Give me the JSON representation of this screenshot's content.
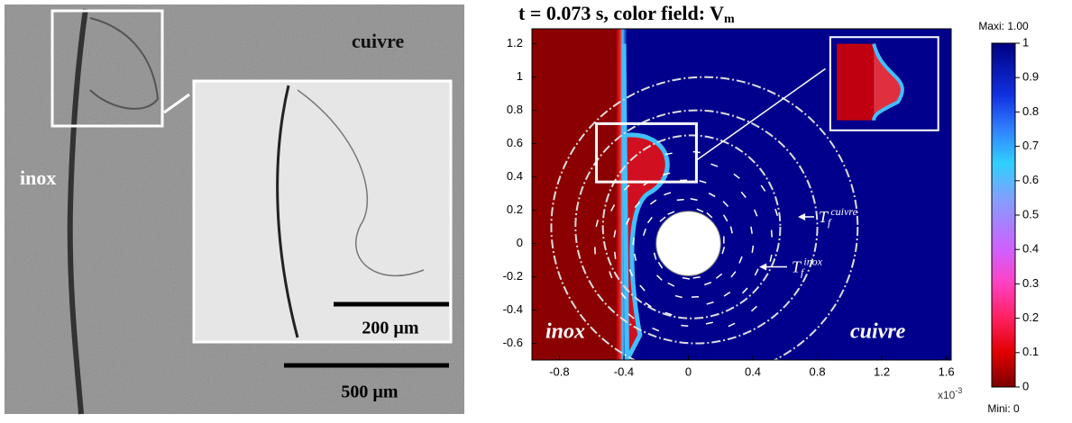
{
  "micrograph": {
    "labels": {
      "inox": "inox",
      "cuivre": "cuivre"
    },
    "scale_bars": [
      {
        "label": "200 µm"
      },
      {
        "label": "500 µm"
      }
    ]
  },
  "simulation": {
    "title": "t = 0.073 s, color field: V",
    "title_subscript": "m",
    "xlim": [
      -0.97,
      1.63
    ],
    "xticks": [
      -0.8,
      -0.4,
      0,
      0.4,
      0.8,
      1.2,
      1.6
    ],
    "x_multiplier": "x10",
    "x_multiplier_exponent": "-3",
    "ylim": [
      -0.7,
      1.29
    ],
    "yticks": [
      -0.6,
      -0.4,
      -0.2,
      0,
      0.2,
      0.4,
      0.6,
      0.8,
      1,
      1.2
    ],
    "region_labels": {
      "inox": "inox",
      "cuivre": "cuivre"
    },
    "isotherm_labels": [
      {
        "base": "T",
        "sub": "f",
        "sup": "cuivre"
      },
      {
        "base": "T",
        "sub": "f",
        "sup": "inox"
      }
    ]
  },
  "colorbar": {
    "max_label": "Maxi: 1.00",
    "min_label": "Mini: 0",
    "ticks": [
      0,
      0.1,
      0.2,
      0.3,
      0.4,
      0.5,
      0.6,
      0.7,
      0.8,
      0.9,
      1
    ]
  }
}
